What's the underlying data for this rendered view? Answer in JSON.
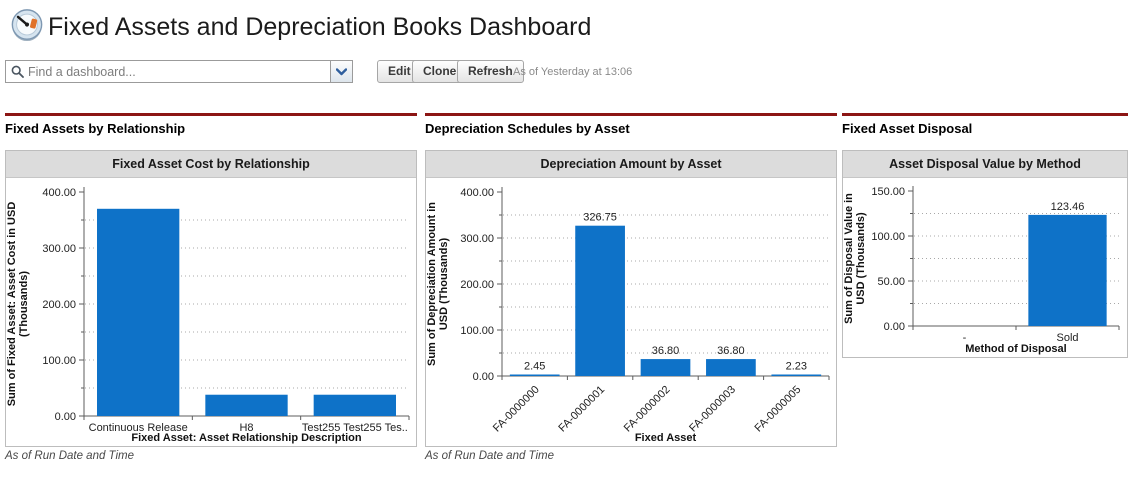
{
  "header": {
    "title": "Fixed Assets and Depreciation Books Dashboard"
  },
  "toolbar": {
    "find_placeholder": "Find a dashboard...",
    "edit": "Edit",
    "clone": "Clone",
    "refresh": "Refresh",
    "as_of": "As of Yesterday at 13:06"
  },
  "colors": {
    "bar": "#0e72c8",
    "rule": "#8c1514",
    "chart_title_bg": "#dcdcdc"
  },
  "panels": [
    {
      "heading": "Fixed Assets by Relationship",
      "footnote": "As of Run Date and Time"
    },
    {
      "heading": "Depreciation Schedules by Asset",
      "footnote": "As of Run Date and Time"
    },
    {
      "heading": "Fixed Asset Disposal",
      "footnote": ""
    }
  ],
  "chart_data": [
    {
      "type": "bar",
      "title": "Fixed Asset Cost by Relationship",
      "categories": [
        "Continuous Release",
        "H8",
        "Test255 Test255 Tes.."
      ],
      "values": [
        370,
        38,
        38
      ],
      "value_labels": [
        "",
        "",
        ""
      ],
      "show_value_labels": false,
      "xlabel": "Fixed Asset: Asset Relationship Description",
      "ylabel": "Sum of Fixed Asset: Asset Cost in USD (Thousands)",
      "ylabel_lines": [
        "Sum of Fixed Asset: Asset Cost in USD",
        "(Thousands)"
      ],
      "ylim": [
        0,
        400
      ],
      "y_major": 100,
      "y_minor": 50,
      "y_tick_format": "0.00",
      "x_label_rotation": 0,
      "grid": "dotted",
      "legend": "none"
    },
    {
      "type": "bar",
      "title": "Depreciation Amount by Asset",
      "categories": [
        "FA-0000000",
        "FA-0000001",
        "FA-0000002",
        "FA-0000003",
        "FA-0000005"
      ],
      "values": [
        2.45,
        326.75,
        36.8,
        36.8,
        2.23
      ],
      "value_labels": [
        "2.45",
        "326.75",
        "36.80",
        "36.80",
        "2.23"
      ],
      "show_value_labels": true,
      "xlabel": "Fixed Asset",
      "ylabel": "Sum of Depreciation Amount in USD (Thousands)",
      "ylabel_lines": [
        "Sum of Depreciation Amount in",
        "USD (Thousands)"
      ],
      "ylim": [
        0,
        400
      ],
      "y_major": 100,
      "y_minor": 50,
      "y_tick_format": "0.00",
      "x_label_rotation": -45,
      "grid": "dotted",
      "legend": "none"
    },
    {
      "type": "bar",
      "title": "Asset Disposal Value by Method",
      "categories": [
        "-",
        "Sold"
      ],
      "values": [
        0,
        123.46
      ],
      "value_labels": [
        "",
        "123.46"
      ],
      "show_value_labels": true,
      "xlabel": "Method of Disposal",
      "ylabel": "Sum of Disposal Value in USD (Thousands)",
      "ylabel_lines": [
        "Sum of Disposal Value in",
        "USD (Thousands)"
      ],
      "ylim": [
        0,
        150
      ],
      "y_major": 50,
      "y_minor": 25,
      "y_tick_format": "0.00",
      "x_label_rotation": 0,
      "grid": "dotted",
      "legend": "none"
    }
  ]
}
